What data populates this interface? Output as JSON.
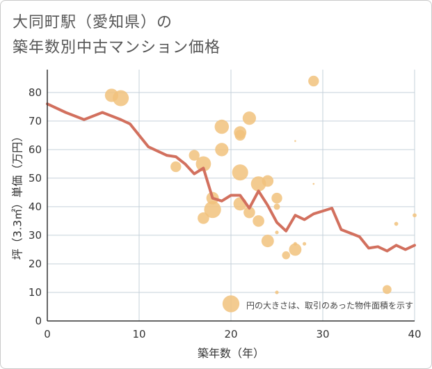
{
  "header": {
    "title_line1": "大同町駅（愛知県）の",
    "title_line2": "築年数別中古マンション価格"
  },
  "chart_data": {
    "type": "scatter",
    "xlabel": "築年数（年）",
    "ylabel": "坪（3.3㎡）単価（万円）",
    "xlim": [
      0,
      40
    ],
    "ylim": [
      0,
      88
    ],
    "xticks": [
      0,
      10,
      20,
      30,
      40
    ],
    "yticks": [
      0,
      10,
      20,
      30,
      40,
      50,
      60,
      70,
      80
    ],
    "grid": true,
    "note": "円の大きさは、取引のあった物件面積を示す",
    "colors": {
      "bubble": "#f1c27d",
      "line": "#d2705e",
      "grid": "#c5d0da",
      "axis": "#333333"
    },
    "scatter_series": {
      "points": [
        {
          "x": 7,
          "y": 79,
          "size": 3.0
        },
        {
          "x": 8,
          "y": 78,
          "size": 3.6
        },
        {
          "x": 29,
          "y": 84,
          "size": 2.4
        },
        {
          "x": 19,
          "y": 68,
          "size": 3.2
        },
        {
          "x": 21,
          "y": 66,
          "size": 2.8
        },
        {
          "x": 21,
          "y": 65,
          "size": 2.4
        },
        {
          "x": 22,
          "y": 71,
          "size": 3.0
        },
        {
          "x": 19,
          "y": 60,
          "size": 3.0
        },
        {
          "x": 16,
          "y": 58,
          "size": 2.4
        },
        {
          "x": 17,
          "y": 55,
          "size": 3.4
        },
        {
          "x": 14,
          "y": 54,
          "size": 2.4
        },
        {
          "x": 21,
          "y": 52,
          "size": 3.6
        },
        {
          "x": 23,
          "y": 48,
          "size": 3.4
        },
        {
          "x": 24,
          "y": 49,
          "size": 2.6
        },
        {
          "x": 25,
          "y": 43,
          "size": 2.4
        },
        {
          "x": 25,
          "y": 40,
          "size": 1.4
        },
        {
          "x": 18,
          "y": 43,
          "size": 2.8
        },
        {
          "x": 18,
          "y": 39,
          "size": 3.8
        },
        {
          "x": 17,
          "y": 36,
          "size": 2.6
        },
        {
          "x": 21,
          "y": 41,
          "size": 3.0
        },
        {
          "x": 22,
          "y": 38,
          "size": 2.6
        },
        {
          "x": 23,
          "y": 35,
          "size": 2.6
        },
        {
          "x": 24,
          "y": 28,
          "size": 2.8
        },
        {
          "x": 25,
          "y": 31,
          "size": 0.8
        },
        {
          "x": 27,
          "y": 25,
          "size": 2.8
        },
        {
          "x": 26,
          "y": 23,
          "size": 1.8
        },
        {
          "x": 27,
          "y": 27,
          "size": 0.8
        },
        {
          "x": 28,
          "y": 27,
          "size": 0.8
        },
        {
          "x": 27,
          "y": 63,
          "size": 0.4
        },
        {
          "x": 29,
          "y": 48,
          "size": 0.4
        },
        {
          "x": 38,
          "y": 34,
          "size": 0.9
        },
        {
          "x": 40,
          "y": 37,
          "size": 0.9
        },
        {
          "x": 37,
          "y": 11,
          "size": 2.0
        },
        {
          "x": 25,
          "y": 10,
          "size": 0.8
        },
        {
          "x": 20,
          "y": 6,
          "size": 3.8
        }
      ]
    },
    "line_series": {
      "x": [
        0,
        2,
        4,
        6,
        8,
        9,
        11,
        13,
        14,
        15,
        16,
        17,
        18,
        19,
        20,
        21,
        22,
        23,
        24,
        25,
        26,
        27,
        28,
        29,
        30,
        31,
        32,
        34,
        35,
        36,
        37,
        38,
        39,
        40
      ],
      "y": [
        76,
        73,
        70.5,
        73,
        70.5,
        69,
        61,
        58,
        57.5,
        55,
        51.5,
        53.5,
        43,
        42,
        44,
        44,
        39.5,
        45.5,
        40.5,
        34.5,
        31.5,
        37,
        35.5,
        37.5,
        38.5,
        39.5,
        32,
        29.5,
        25.5,
        26,
        24.5,
        26.5,
        25,
        26.5
      ]
    }
  }
}
